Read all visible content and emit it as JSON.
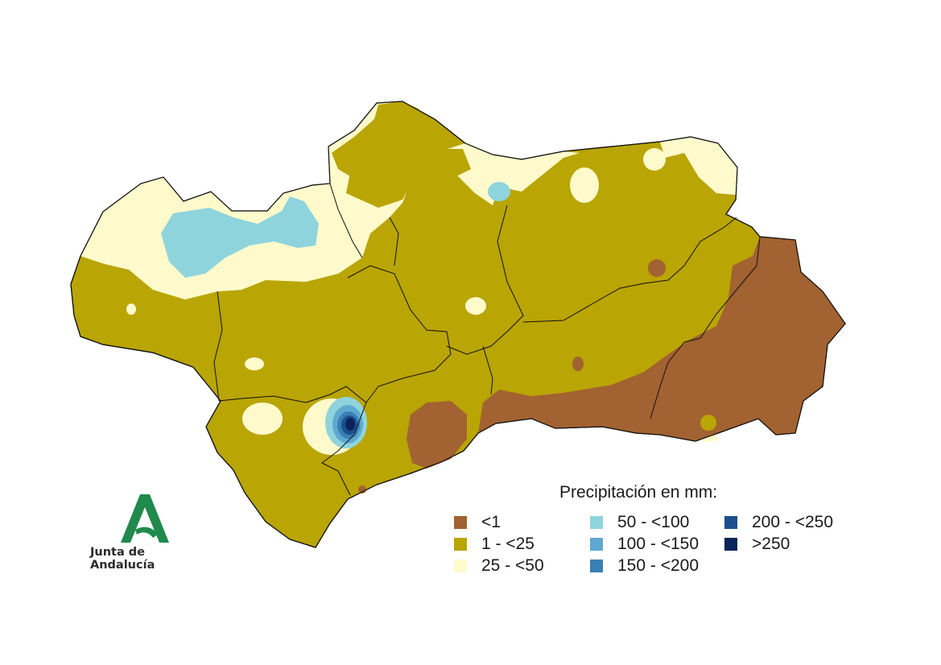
{
  "legend": {
    "title": "Precipitación en mm:",
    "items": [
      {
        "label": "<1",
        "color": "#a26231"
      },
      {
        "label": "1 - <25",
        "color": "#b9a503"
      },
      {
        "label": "25 - <50",
        "color": "#fffacb"
      },
      {
        "label": "50 - <100",
        "color": "#8fd4dd"
      },
      {
        "label": "100 - <150",
        "color": "#5fa9d1"
      },
      {
        "label": "150 - <200",
        "color": "#3b7fb3"
      },
      {
        "label": "200 - <250",
        "color": "#1c4f8f"
      },
      {
        "label": ">250",
        "color": "#0a2458"
      }
    ]
  },
  "logo": {
    "text": "Junta de Andalucía",
    "color": "#1f8a4c"
  }
}
